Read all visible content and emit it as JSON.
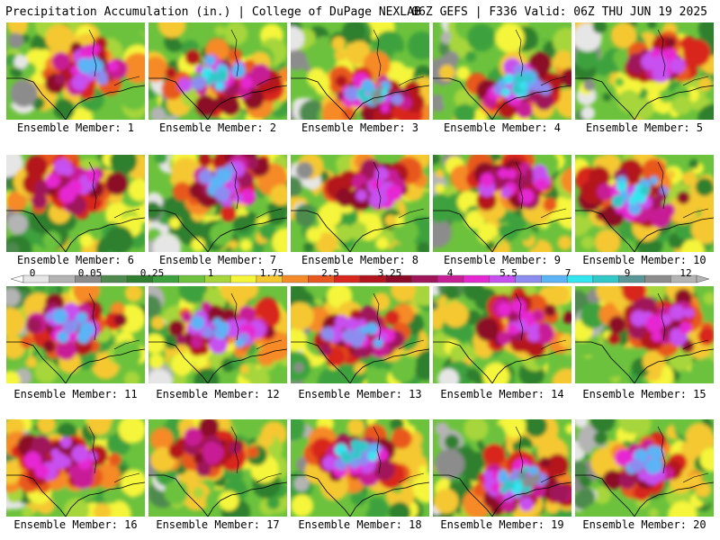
{
  "header": {
    "title_left": "Precipitation Accumulation (in.) | College of DuPage NEXLAB",
    "title_right": "06Z GEFS | F336 Valid: 06Z THU JUN 19 2025"
  },
  "colorbar": {
    "labels": [
      "0",
      "0.05",
      "0.25",
      "1",
      "1.75",
      "2.5",
      "3.25",
      "4",
      "5.5",
      "7",
      "9",
      "12"
    ],
    "colors": [
      "#e6e6e6",
      "#b4b4b4",
      "#8c8c8c",
      "#4e8a4e",
      "#2f7f2f",
      "#3da23d",
      "#6cc23c",
      "#a6d63a",
      "#f5f53a",
      "#f5c832",
      "#f58a28",
      "#e8581e",
      "#d8281e",
      "#b4141e",
      "#8c0a28",
      "#a0145a",
      "#c81e96",
      "#e628d2",
      "#c850f0",
      "#8c8cf0",
      "#5ab4f5",
      "#32e6f0",
      "#32c8c8",
      "#5a9696",
      "#8c8c8c",
      "#b4b4b4"
    ]
  },
  "panels": [
    {
      "label": "Ensemble Member: 1"
    },
    {
      "label": "Ensemble Member: 2"
    },
    {
      "label": "Ensemble Member: 3"
    },
    {
      "label": "Ensemble Member: 4"
    },
    {
      "label": "Ensemble Member: 5"
    },
    {
      "label": "Ensemble Member: 6"
    },
    {
      "label": "Ensemble Member: 7"
    },
    {
      "label": "Ensemble Member: 8"
    },
    {
      "label": "Ensemble Member: 9"
    },
    {
      "label": "Ensemble Member: 10"
    },
    {
      "label": "Ensemble Member: 11"
    },
    {
      "label": "Ensemble Member: 12"
    },
    {
      "label": "Ensemble Member: 13"
    },
    {
      "label": "Ensemble Member: 14"
    },
    {
      "label": "Ensemble Member: 15"
    },
    {
      "label": "Ensemble Member: 16"
    },
    {
      "label": "Ensemble Member: 17"
    },
    {
      "label": "Ensemble Member: 18"
    },
    {
      "label": "Ensemble Member: 19"
    },
    {
      "label": "Ensemble Member: 20"
    }
  ]
}
